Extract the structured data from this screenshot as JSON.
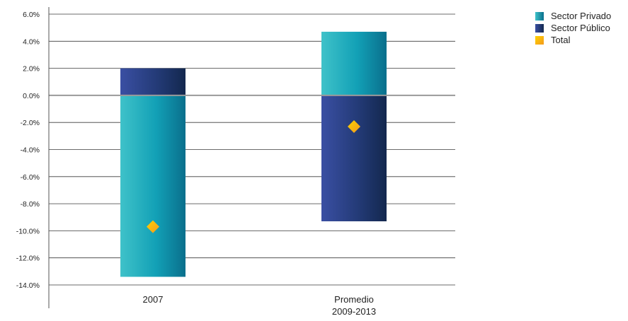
{
  "chart_data": {
    "type": "bar",
    "stacked": true,
    "categories": [
      [
        "2007"
      ],
      [
        "Promedio",
        "2009-2013"
      ]
    ],
    "series": [
      {
        "name": "Sector Privado",
        "values": [
          -13.4,
          4.7
        ],
        "color": "#1aa3b8"
      },
      {
        "name": "Sector Público",
        "values": [
          2.0,
          -9.3
        ],
        "color": "#2b3f84"
      },
      {
        "name": "Total",
        "values": [
          -9.7,
          -2.3
        ],
        "color": "#f5b417",
        "marker": "diamond"
      }
    ],
    "ylim": [
      -14,
      6
    ],
    "yticks": [
      6,
      4,
      2,
      0,
      -2,
      -4,
      -6,
      -8,
      -10,
      -12,
      -14
    ],
    "ytick_labels": [
      "6.0%",
      "4.0%",
      "2.0%",
      "0.0%",
      "-2.0%",
      "-4.0%",
      "-6.0%",
      "-8.0%",
      "-10.0%",
      "-12.0%",
      "-14.0%"
    ],
    "grid": true,
    "legend_position": "top-right",
    "title": "",
    "xlabel": "",
    "ylabel": ""
  }
}
